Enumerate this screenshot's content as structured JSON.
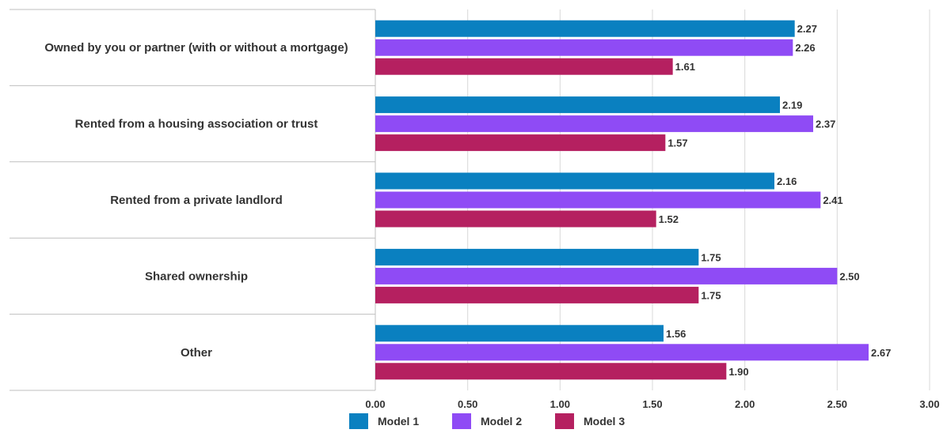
{
  "chart_data": {
    "type": "bar",
    "orientation": "horizontal",
    "categories": [
      "Owned by you or partner (with or without a mortgage)",
      "Rented from a housing association or trust",
      "Rented from a private landlord",
      "Shared ownership",
      "Other"
    ],
    "series": [
      {
        "name": "Model 1",
        "color": "#0a80c0",
        "values": [
          2.27,
          2.19,
          2.16,
          1.75,
          1.56
        ]
      },
      {
        "name": "Model 2",
        "color": "#8f4bf5",
        "values": [
          2.26,
          2.37,
          2.41,
          2.5,
          2.67
        ]
      },
      {
        "name": "Model 3",
        "color": "#b52060",
        "values": [
          1.61,
          1.57,
          1.52,
          1.75,
          1.9
        ]
      }
    ],
    "xlim": [
      0,
      3
    ],
    "ticks": [
      "0.00",
      "0.50",
      "1.00",
      "1.50",
      "2.00",
      "2.50",
      "3.00"
    ],
    "grid": true,
    "legend": "bottom",
    "data_labels": true
  }
}
